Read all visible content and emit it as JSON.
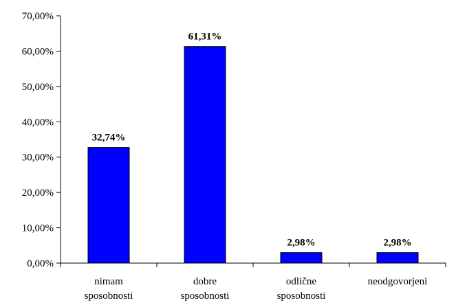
{
  "colors": {
    "bar_fill": "#0000FF",
    "bar_stroke": "#000000",
    "axis": "#000000",
    "background": "#FFFFFF"
  },
  "chart_data": {
    "type": "bar",
    "title": "",
    "xlabel": "",
    "ylabel": "",
    "categories": [
      [
        "nimam",
        "sposobnosti"
      ],
      [
        "dobre",
        "sposobnosti"
      ],
      [
        "odlične",
        "sposobnosti"
      ],
      [
        "neodgovorjeni"
      ]
    ],
    "values": [
      32.74,
      61.31,
      2.98,
      2.98
    ],
    "data_labels": [
      "32,74%",
      "61,31%",
      "2,98%",
      "2,98%"
    ],
    "ylim": [
      0,
      70
    ],
    "y_ticks": [
      0,
      10,
      20,
      30,
      40,
      50,
      60,
      70
    ],
    "y_tick_labels": [
      "0,00%",
      "10,00%",
      "20,00%",
      "30,00%",
      "40,00%",
      "50,00%",
      "60,00%",
      "70,00%"
    ],
    "grid": false,
    "legend": "none"
  }
}
